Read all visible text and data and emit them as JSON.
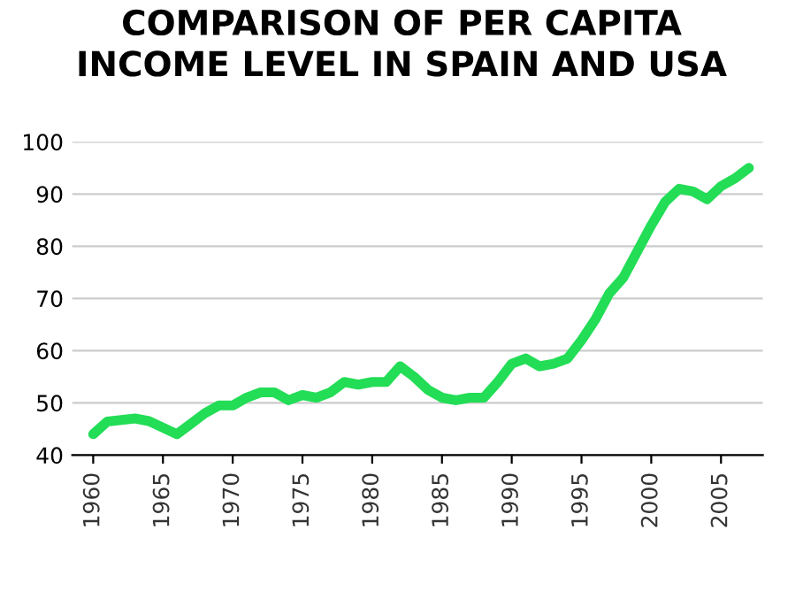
{
  "chart_data": {
    "type": "line",
    "title": "COMPARISON OF PER CAPITA\nINCOME LEVEL IN SPAIN AND USA",
    "x": [
      1960,
      1961,
      1963,
      1964,
      1966,
      1967,
      1968,
      1969,
      1970,
      1971,
      1972,
      1973,
      1974,
      1975,
      1976,
      1977,
      1978,
      1979,
      1980,
      1981,
      1982,
      1983,
      1984,
      1985,
      1986,
      1987,
      1988,
      1989,
      1990,
      1991,
      1992,
      1993,
      1994,
      1995,
      1996,
      1997,
      1998,
      1999,
      2000,
      2001,
      2002,
      2003,
      2004,
      2005,
      2006,
      2007
    ],
    "series": [
      {
        "color": "#22dd55",
        "values": [
          44,
          46.4,
          47,
          46.5,
          44,
          46,
          48,
          49.5,
          49.5,
          51,
          52,
          52,
          50.5,
          51.5,
          51,
          52,
          54,
          53.5,
          54,
          54,
          57,
          55,
          52.5,
          51,
          50.5,
          51,
          51,
          54,
          57.5,
          58.5,
          57,
          57.5,
          58.5,
          62,
          66,
          71,
          74,
          79,
          84,
          88.5,
          91,
          90.5,
          89,
          91.5,
          93,
          95
        ]
      }
    ],
    "xlim": [
      1958.5,
      2008
    ],
    "ylim": [
      40,
      100
    ],
    "xticks": [
      1960,
      1965,
      1970,
      1975,
      1980,
      1985,
      1990,
      1995,
      2000,
      2005
    ],
    "yticks": [
      40,
      50,
      60,
      70,
      80,
      90,
      100
    ],
    "grid": "y",
    "line_style": "solid"
  }
}
